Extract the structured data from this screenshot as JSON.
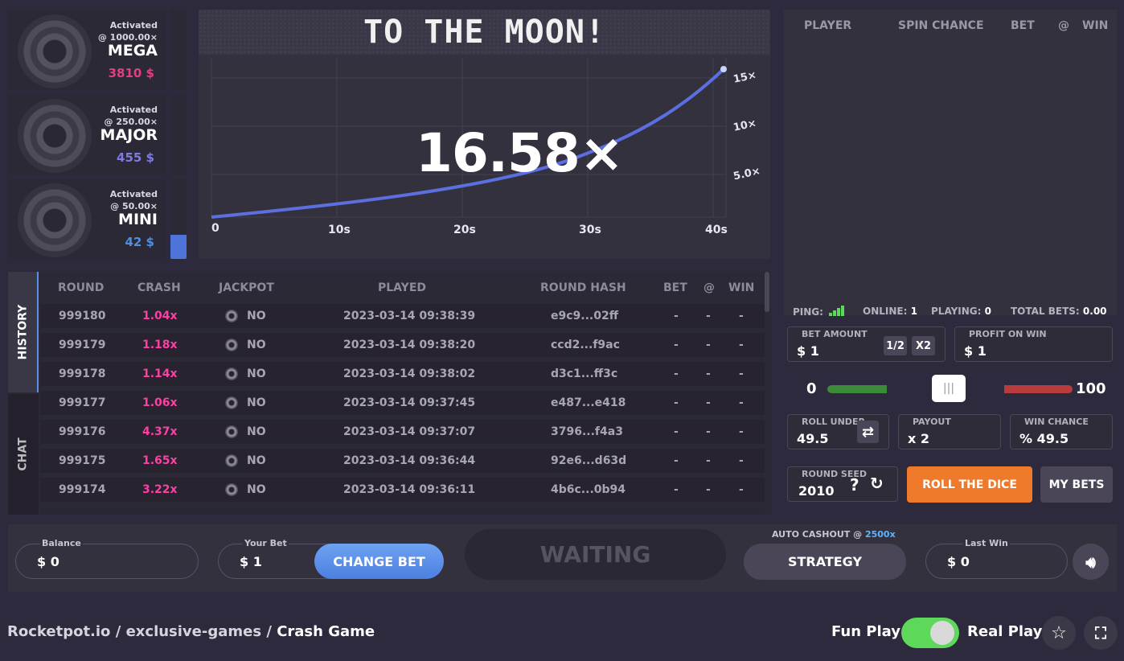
{
  "jackpots": [
    {
      "status": "Activated",
      "threshold": "@ 1000.00×",
      "name": "MEGA",
      "amount": "3810 $",
      "color": "#e0407f",
      "fill": 0
    },
    {
      "status": "Activated",
      "threshold": "@ 250.00×",
      "name": "MAJOR",
      "amount": "455 $",
      "color": "#7e7ce0",
      "fill": 0
    },
    {
      "status": "Activated",
      "threshold": "@ 50.00×",
      "name": "MINI",
      "amount": "42 $",
      "color": "#4f8fe0",
      "fill": 0.3
    }
  ],
  "graph": {
    "banner": "TO THE MOON!",
    "multiplier": "16.58×",
    "x_ticks": [
      "0",
      "10s",
      "20s",
      "30s",
      "40s"
    ],
    "y_ticks": [
      "15×",
      "10×",
      "5.0×"
    ]
  },
  "history": {
    "tabs": {
      "history": "HISTORY",
      "chat": "CHAT"
    },
    "columns": [
      "ROUND",
      "CRASH",
      "JACKPOT",
      "PLAYED",
      "ROUND HASH",
      "BET",
      "@",
      "WIN"
    ],
    "rows": [
      {
        "round": "999180",
        "crash": "1.04x",
        "jackpot": "NO",
        "played": "2023-03-14 09:38:39",
        "hash": "e9c9...02ff",
        "bet": "-",
        "at": "-",
        "win": "-"
      },
      {
        "round": "999179",
        "crash": "1.18x",
        "jackpot": "NO",
        "played": "2023-03-14 09:38:20",
        "hash": "ccd2...f9ac",
        "bet": "-",
        "at": "-",
        "win": "-"
      },
      {
        "round": "999178",
        "crash": "1.14x",
        "jackpot": "NO",
        "played": "2023-03-14 09:38:02",
        "hash": "d3c1...ff3c",
        "bet": "-",
        "at": "-",
        "win": "-"
      },
      {
        "round": "999177",
        "crash": "1.06x",
        "jackpot": "NO",
        "played": "2023-03-14 09:37:45",
        "hash": "e487...e418",
        "bet": "-",
        "at": "-",
        "win": "-"
      },
      {
        "round": "999176",
        "crash": "4.37x",
        "jackpot": "NO",
        "played": "2023-03-14 09:37:07",
        "hash": "3796...f4a3",
        "bet": "-",
        "at": "-",
        "win": "-"
      },
      {
        "round": "999175",
        "crash": "1.65x",
        "jackpot": "NO",
        "played": "2023-03-14 09:36:44",
        "hash": "92e6...d63d",
        "bet": "-",
        "at": "-",
        "win": "-"
      },
      {
        "round": "999174",
        "crash": "3.22x",
        "jackpot": "NO",
        "played": "2023-03-14 09:36:11",
        "hash": "4b6c...0b94",
        "bet": "-",
        "at": "-",
        "win": "-"
      }
    ]
  },
  "bets_table": {
    "columns": [
      "PLAYER",
      "SPIN CHANCE",
      "BET",
      "@",
      "WIN"
    ]
  },
  "stats": {
    "ping_label": "PING:",
    "online_label": "ONLINE:",
    "online": "1",
    "playing_label": "PLAYING:",
    "playing": "0",
    "total_label": "TOTAL BETS:",
    "total": "0.00"
  },
  "dice": {
    "bet_amount_label": "BET AMOUNT",
    "bet_amount": "$ 1",
    "half": "1/2",
    "double": "X2",
    "profit_label": "PROFIT ON WIN",
    "profit": "$ 1",
    "slider_min": "0",
    "slider_max": "100",
    "slider_value": 49.5,
    "roll_under_label": "ROLL UNDER",
    "roll_under": "49.5",
    "payout_label": "PAYOUT",
    "payout": "x 2",
    "win_chance_label": "WIN CHANCE",
    "win_chance": "% 49.5",
    "seed_label": "ROUND SEED",
    "seed": "2010",
    "seed_help": "?",
    "roll_button": "ROLL THE DICE",
    "my_bets_button": "MY BETS"
  },
  "bottom": {
    "balance_label": "Balance",
    "balance": "$ 0",
    "your_bet_label": "Your Bet",
    "your_bet": "$ 1",
    "change_bet": "CHANGE BET",
    "status": "WAITING",
    "auto_cashout_label": "AUTO CASHOUT @",
    "auto_cashout_value": "2500x",
    "strategy": "STRATEGY",
    "last_win_label": "Last Win",
    "last_win": "$ 0"
  },
  "footer": {
    "site": "Rocketpot.io",
    "sep": "/",
    "section": "exclusive-games",
    "page": "Crash Game",
    "fun_play": "Fun Play",
    "real_play": "Real Play"
  },
  "colors": {
    "accent_orange": "#f07a2b",
    "crash_pink": "#ff3ea6",
    "toggle_green": "#5dd85a",
    "change_bet_blue": "#5a8fe8",
    "auto_cashout_blue": "#5cb4ff"
  }
}
